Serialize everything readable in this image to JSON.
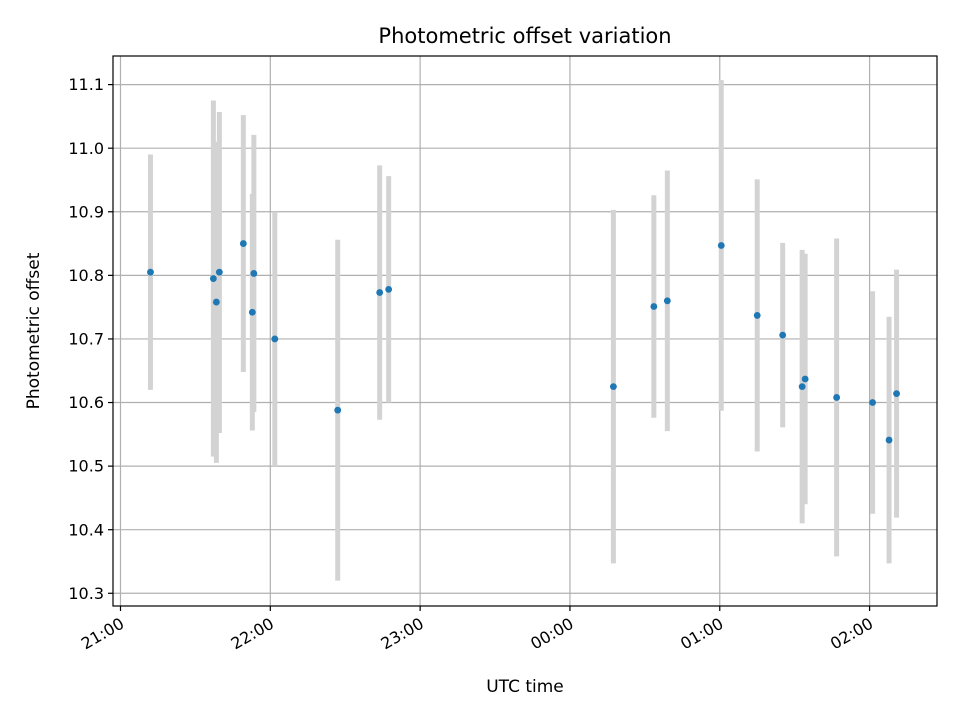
{
  "chart_data": {
    "type": "scatter",
    "title": "Photometric offset variation",
    "xlabel": "UTC time",
    "ylabel": "Photometric offset",
    "x_unit": "hours after 21:00 UTC",
    "xlim": [
      -0.05,
      5.45
    ],
    "ylim": [
      10.28,
      11.145
    ],
    "grid": true,
    "x_ticks": [
      {
        "value": 0,
        "label": "21:00"
      },
      {
        "value": 1,
        "label": "22:00"
      },
      {
        "value": 2,
        "label": "23:00"
      },
      {
        "value": 3,
        "label": "00:00"
      },
      {
        "value": 4,
        "label": "01:00"
      },
      {
        "value": 5,
        "label": "02:00"
      }
    ],
    "y_ticks": [
      {
        "value": 10.3,
        "label": "10.3"
      },
      {
        "value": 10.4,
        "label": "10.4"
      },
      {
        "value": 10.5,
        "label": "10.5"
      },
      {
        "value": 10.6,
        "label": "10.6"
      },
      {
        "value": 10.7,
        "label": "10.7"
      },
      {
        "value": 10.8,
        "label": "10.8"
      },
      {
        "value": 10.9,
        "label": "10.9"
      },
      {
        "value": 11.0,
        "label": "11.0"
      },
      {
        "value": 11.1,
        "label": "11.1"
      }
    ],
    "points": [
      {
        "x": 0.2,
        "y": 10.805,
        "ylow": 10.62,
        "yhigh": 10.99
      },
      {
        "x": 0.62,
        "y": 10.795,
        "ylow": 10.515,
        "yhigh": 11.075
      },
      {
        "x": 0.64,
        "y": 10.758,
        "ylow": 10.505,
        "yhigh": 11.01
      },
      {
        "x": 0.66,
        "y": 10.805,
        "ylow": 10.552,
        "yhigh": 11.057
      },
      {
        "x": 0.82,
        "y": 10.85,
        "ylow": 10.648,
        "yhigh": 11.052
      },
      {
        "x": 0.88,
        "y": 10.742,
        "ylow": 10.556,
        "yhigh": 10.928
      },
      {
        "x": 0.89,
        "y": 10.803,
        "ylow": 10.585,
        "yhigh": 11.021
      },
      {
        "x": 1.03,
        "y": 10.7,
        "ylow": 10.5,
        "yhigh": 10.9
      },
      {
        "x": 1.45,
        "y": 10.588,
        "ylow": 10.32,
        "yhigh": 10.856
      },
      {
        "x": 1.73,
        "y": 10.773,
        "ylow": 10.573,
        "yhigh": 10.973
      },
      {
        "x": 1.79,
        "y": 10.778,
        "ylow": 10.6,
        "yhigh": 10.956
      },
      {
        "x": 3.29,
        "y": 10.625,
        "ylow": 10.347,
        "yhigh": 10.903
      },
      {
        "x": 3.56,
        "y": 10.751,
        "ylow": 10.576,
        "yhigh": 10.926
      },
      {
        "x": 3.65,
        "y": 10.76,
        "ylow": 10.555,
        "yhigh": 10.965
      },
      {
        "x": 4.01,
        "y": 10.847,
        "ylow": 10.587,
        "yhigh": 11.107
      },
      {
        "x": 4.25,
        "y": 10.737,
        "ylow": 10.523,
        "yhigh": 10.951
      },
      {
        "x": 4.42,
        "y": 10.706,
        "ylow": 10.561,
        "yhigh": 10.851
      },
      {
        "x": 4.55,
        "y": 10.625,
        "ylow": 10.41,
        "yhigh": 10.84
      },
      {
        "x": 4.57,
        "y": 10.637,
        "ylow": 10.44,
        "yhigh": 10.834
      },
      {
        "x": 4.78,
        "y": 10.608,
        "ylow": 10.358,
        "yhigh": 10.858
      },
      {
        "x": 5.02,
        "y": 10.6,
        "ylow": 10.425,
        "yhigh": 10.775
      },
      {
        "x": 5.13,
        "y": 10.541,
        "ylow": 10.347,
        "yhigh": 10.735
      },
      {
        "x": 5.18,
        "y": 10.614,
        "ylow": 10.419,
        "yhigh": 10.809
      }
    ],
    "colors": {
      "point": "#1f77b4",
      "errorbar": "#d3d3d3",
      "grid": "#b0b0b0"
    }
  }
}
